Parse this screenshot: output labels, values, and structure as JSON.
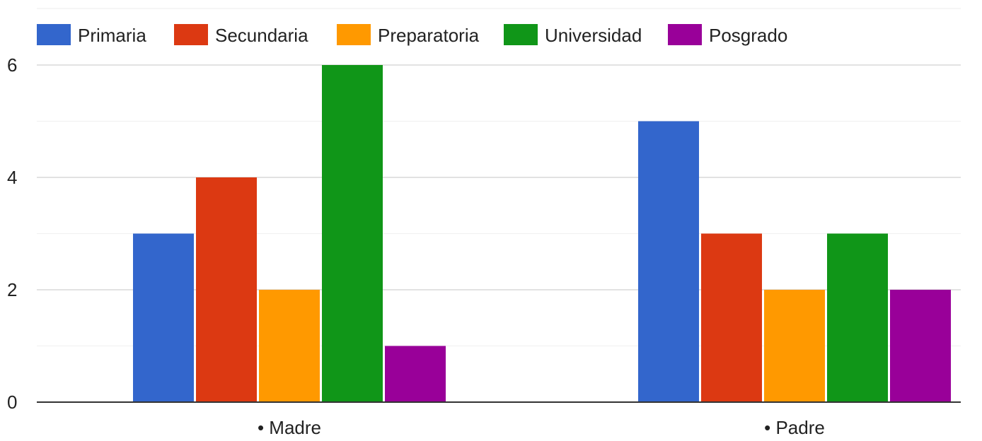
{
  "chart_data": {
    "type": "bar",
    "title": "",
    "xlabel": "",
    "ylabel": "",
    "categories": [
      "• Madre",
      "• Padre"
    ],
    "series": [
      {
        "name": "Primaria",
        "color": "#3366cc",
        "values": [
          3,
          5
        ]
      },
      {
        "name": "Secundaria",
        "color": "#dc3912",
        "values": [
          4,
          3
        ]
      },
      {
        "name": "Preparatoria",
        "color": "#ff9900",
        "values": [
          2,
          2
        ]
      },
      {
        "name": "Universidad",
        "color": "#109618",
        "values": [
          6,
          3
        ]
      },
      {
        "name": "Posgrado",
        "color": "#990099",
        "values": [
          1,
          2
        ]
      }
    ],
    "ylim": [
      0,
      6
    ],
    "y_ticks": [
      "0",
      "2",
      "4",
      "6"
    ],
    "y_tick_values": [
      0,
      2,
      4,
      6
    ],
    "minor_gridlines": [
      1,
      3,
      5
    ],
    "grid": true,
    "legend_position": "top-left"
  }
}
